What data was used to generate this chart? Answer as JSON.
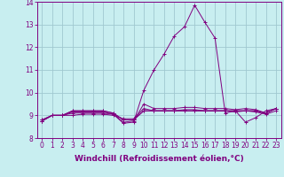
{
  "xlabel": "Windchill (Refroidissement éolien,°C)",
  "bg_color": "#c8eef0",
  "grid_color": "#a0c8d0",
  "line_color": "#800080",
  "marker": "+",
  "x": [
    0,
    1,
    2,
    3,
    4,
    5,
    6,
    7,
    8,
    9,
    10,
    11,
    12,
    13,
    14,
    15,
    16,
    17,
    18,
    19,
    20,
    21,
    22,
    23
  ],
  "series": [
    [
      8.8,
      9.0,
      9.0,
      9.0,
      9.05,
      9.05,
      9.05,
      9.0,
      8.85,
      8.85,
      9.3,
      9.2,
      9.2,
      9.2,
      9.25,
      9.25,
      9.2,
      9.2,
      9.2,
      9.15,
      9.2,
      9.15,
      9.05,
      9.2
    ],
    [
      8.8,
      9.0,
      9.0,
      9.1,
      9.1,
      9.1,
      9.1,
      9.05,
      8.65,
      8.7,
      10.1,
      11.0,
      11.7,
      12.5,
      12.9,
      13.85,
      13.1,
      12.4,
      9.1,
      9.2,
      8.7,
      8.9,
      9.2,
      9.3
    ],
    [
      8.75,
      9.0,
      9.0,
      9.15,
      9.15,
      9.15,
      9.15,
      9.05,
      8.7,
      8.75,
      9.5,
      9.3,
      9.3,
      9.3,
      9.35,
      9.35,
      9.3,
      9.3,
      9.3,
      9.25,
      9.3,
      9.25,
      9.1,
      9.3
    ],
    [
      8.75,
      9.0,
      9.0,
      9.2,
      9.2,
      9.2,
      9.2,
      9.1,
      8.8,
      8.8,
      9.2,
      9.2,
      9.2,
      9.2,
      9.2,
      9.2,
      9.2,
      9.2,
      9.2,
      9.2,
      9.2,
      9.2,
      9.1,
      9.3
    ],
    [
      8.75,
      9.0,
      9.0,
      9.2,
      9.2,
      9.2,
      9.2,
      9.1,
      8.8,
      8.8,
      9.2,
      9.2,
      9.2,
      9.2,
      9.2,
      9.2,
      9.2,
      9.2,
      9.2,
      9.2,
      9.2,
      9.2,
      9.1,
      9.3
    ]
  ],
  "ylim": [
    8.0,
    14.0
  ],
  "yticks": [
    8,
    9,
    10,
    11,
    12,
    13,
    14
  ],
  "xticks": [
    0,
    1,
    2,
    3,
    4,
    5,
    6,
    7,
    8,
    9,
    10,
    11,
    12,
    13,
    14,
    15,
    16,
    17,
    18,
    19,
    20,
    21,
    22,
    23
  ],
  "tick_fontsize": 5.5,
  "xlabel_fontsize": 6.5
}
